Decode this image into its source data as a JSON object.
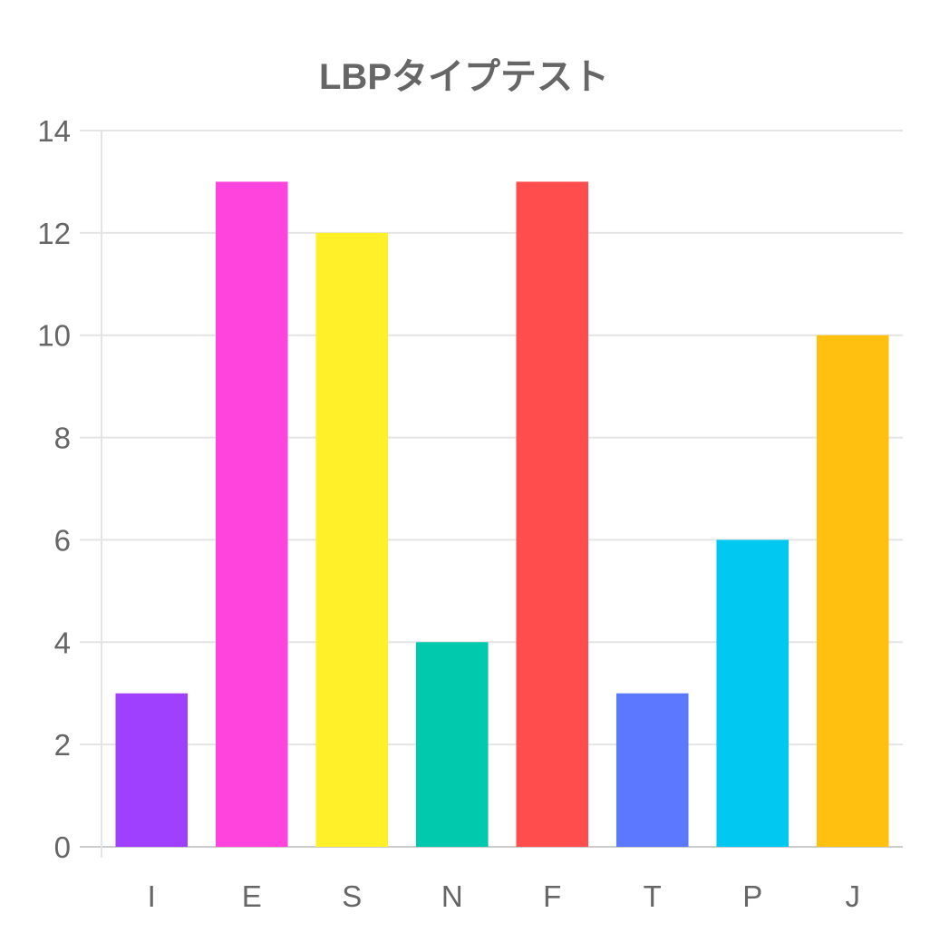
{
  "chart_data": {
    "type": "bar",
    "title": "LBPタイプテスト",
    "categories": [
      "I",
      "E",
      "S",
      "N",
      "F",
      "T",
      "P",
      "J"
    ],
    "values": [
      3,
      13,
      12,
      4,
      13,
      3,
      6,
      10
    ],
    "colors": [
      "#a040ff",
      "#ff44dd",
      "#fff02a",
      "#00c9ad",
      "#ff4d4d",
      "#5b78ff",
      "#00c8f0",
      "#ffc010"
    ],
    "xlabel": "",
    "ylabel": "",
    "ylim": [
      0,
      14
    ],
    "yticks": [
      0,
      2,
      4,
      6,
      8,
      10,
      12,
      14
    ],
    "grid": true,
    "legend": "none"
  }
}
